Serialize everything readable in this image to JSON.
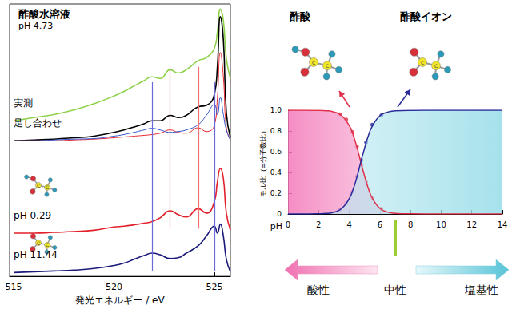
{
  "chart_data": [
    {
      "type": "line",
      "title": "酢酸水溶液",
      "subtitle": "pH 4.73",
      "xlabel": "発光エネルギー / eV",
      "x": [
        515,
        516,
        517,
        518,
        519,
        520,
        520.5,
        521,
        521.5,
        521.9,
        522.3,
        522.8,
        523.2,
        523.6,
        524.2,
        524.6,
        525.0,
        525.15,
        525.3,
        525.45,
        525.6,
        525.8
      ],
      "xlim": [
        514.8,
        525.8
      ],
      "xticks": [
        515,
        520,
        525
      ],
      "ylim": [
        0,
        10.1
      ],
      "tick_labels": "x",
      "grid": false,
      "series": [
        {
          "name": "実測",
          "color": "#8ed14a",
          "values": [
            5.77,
            5.89,
            6.0,
            6.17,
            6.4,
            6.69,
            6.86,
            7.06,
            7.26,
            7.4,
            7.34,
            7.66,
            7.54,
            7.66,
            8.0,
            8.11,
            8.46,
            9.06,
            9.91,
            9.49,
            8.06,
            7.34
          ]
        },
        {
          "name": "足し合わせ",
          "color": "#000000",
          "values": [
            5.03,
            5.06,
            5.09,
            5.14,
            5.2,
            5.34,
            5.43,
            5.54,
            5.66,
            5.77,
            5.77,
            5.97,
            5.89,
            5.97,
            6.29,
            6.34,
            6.74,
            7.77,
            9.63,
            8.77,
            6.06,
            5.14
          ]
        },
        {
          "color": "#e8282d",
          "values": [
            5.03,
            5.03,
            5.03,
            5.06,
            5.09,
            5.14,
            5.17,
            5.2,
            5.23,
            5.26,
            5.31,
            5.43,
            5.34,
            5.31,
            5.51,
            5.37,
            5.6,
            6.6,
            8.3,
            7.4,
            5.5,
            5.06
          ]
        },
        {
          "color": "#3355cc",
          "values": [
            5.03,
            5.03,
            5.06,
            5.09,
            5.11,
            5.2,
            5.26,
            5.34,
            5.43,
            5.49,
            5.43,
            5.34,
            5.37,
            5.43,
            5.63,
            5.97,
            6.37,
            6.0,
            6.63,
            6.0,
            5.43,
            5.06
          ]
        },
        {
          "name": "pH 0.29",
          "color": "#e3202a",
          "values": [
            1.6,
            1.6,
            1.63,
            1.66,
            1.71,
            1.83,
            1.86,
            1.91,
            1.97,
            2.03,
            2.17,
            2.43,
            2.29,
            2.2,
            2.51,
            2.34,
            2.77,
            3.49,
            4.0,
            3.63,
            2.34,
            1.71
          ]
        },
        {
          "name": "pH 11.44",
          "color": "#1a1a7a",
          "values": [
            0.14,
            0.17,
            0.2,
            0.23,
            0.29,
            0.4,
            0.49,
            0.63,
            0.77,
            0.86,
            0.8,
            0.66,
            0.69,
            0.86,
            1.14,
            1.49,
            1.86,
            1.6,
            1.94,
            1.49,
            0.63,
            0.17
          ]
        }
      ],
      "vertical_lines": [
        {
          "x": 521.9,
          "color": "#6a6ad8",
          "y": [
            0.2,
            7.2
          ]
        },
        {
          "x": 522.8,
          "color": "#f07070",
          "y": [
            1.77,
            7.77
          ]
        },
        {
          "x": 524.2,
          "color": "#f07070",
          "y": [
            1.77,
            7.77
          ]
        },
        {
          "x": 525.0,
          "color": "#6a6ad8",
          "y": [
            0.2,
            7.2
          ]
        }
      ]
    },
    {
      "type": "line",
      "xlabel": "pH",
      "ylabel": "モル比（=分子数比）",
      "x": [
        0,
        1,
        2,
        2.5,
        3,
        3.5,
        4,
        4.25,
        4.5,
        4.75,
        5,
        5.25,
        5.5,
        6,
        6.5,
        7,
        8,
        10,
        14
      ],
      "xlim": [
        0,
        14
      ],
      "xticks": [
        0,
        2,
        4,
        6,
        8,
        10,
        12,
        14
      ],
      "ylim": [
        0,
        1
      ],
      "yticks": [
        0,
        0.2,
        0.4,
        0.6,
        0.8,
        {
          "value": 1,
          "label": "1.0"
        }
      ],
      "grid": false,
      "series": [
        {
          "name": "酢酸",
          "color": "#e0304a",
          "marker": "circle",
          "values": [
            1,
            1,
            0.998,
            0.995,
            0.983,
            0.948,
            0.852,
            0.764,
            0.645,
            0.502,
            0.365,
            0.245,
            0.154,
            0.054,
            0.018,
            0.006,
            0.001,
            0,
            0
          ],
          "points": {
            "x": [
              3.4,
              3.8,
              4.2,
              4.5,
              4.8,
              5.1,
              5.5,
              6.1
            ],
            "values": [
              0.96,
              0.91,
              0.79,
              0.65,
              0.47,
              0.31,
              0.15,
              0.05
            ]
          }
        },
        {
          "name": "酢酸イオン",
          "color": "#2a2a9a",
          "marker": "circle",
          "values": [
            0,
            0,
            0.002,
            0.005,
            0.017,
            0.052,
            0.148,
            0.236,
            0.355,
            0.498,
            0.635,
            0.755,
            0.846,
            0.946,
            0.982,
            0.994,
            0.999,
            1,
            1
          ],
          "points": {
            "x": [
              3.4,
              3.8,
              4.2,
              4.5,
              4.8,
              5.1,
              5.5,
              6.1
            ],
            "values": [
              0.04,
              0.1,
              0.21,
              0.36,
              0.52,
              0.69,
              0.86,
              0.95
            ]
          }
        }
      ],
      "annotations": [
        {
          "text": "酸性"
        },
        {
          "text": "中性",
          "x": 7
        },
        {
          "text": "塩基性"
        }
      ]
    }
  ],
  "molecule_atom_label": "C"
}
